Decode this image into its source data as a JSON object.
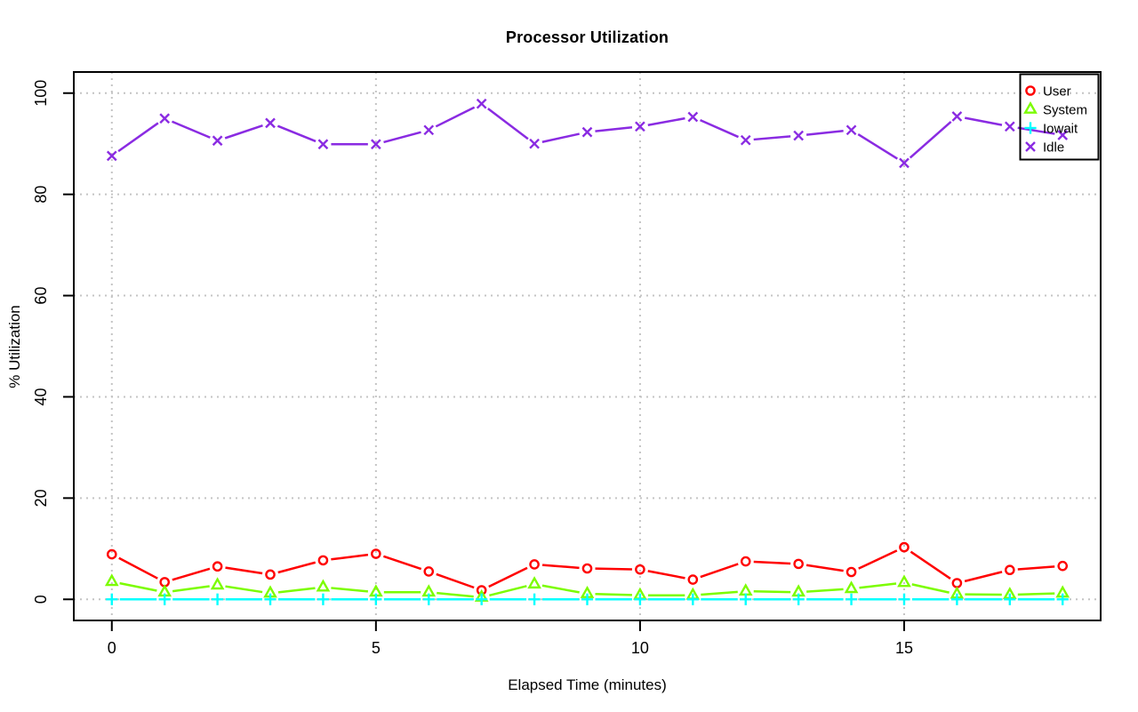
{
  "chart_data": {
    "type": "line",
    "title": "Processor Utilization",
    "xlabel": "Elapsed Time (minutes)",
    "ylabel": "% Utilization",
    "x": [
      0,
      1,
      2,
      3,
      4,
      5,
      6,
      7,
      8,
      9,
      10,
      11,
      12,
      13,
      14,
      15,
      16,
      17,
      18
    ],
    "xticks": [
      0,
      5,
      10,
      15
    ],
    "yticks": [
      0,
      20,
      40,
      60,
      80,
      100
    ],
    "xlim": [
      -0.72,
      18.72
    ],
    "ylim": [
      -4.17,
      104.17
    ],
    "grid": true,
    "grid_style": "dotted",
    "legend_position": "top-right",
    "series": [
      {
        "name": "User",
        "color": "#FF0000",
        "marker": "circle",
        "values": [
          8.9,
          3.4,
          6.5,
          4.9,
          7.7,
          9.0,
          5.5,
          1.8,
          6.9,
          6.1,
          5.9,
          3.9,
          7.5,
          7.0,
          5.4,
          10.3,
          3.2,
          5.8,
          6.6
        ]
      },
      {
        "name": "System",
        "color": "#7CFC00",
        "marker": "triangle",
        "values": [
          3.5,
          1.4,
          2.8,
          1.2,
          2.4,
          1.4,
          1.4,
          0.4,
          3.0,
          1.1,
          0.8,
          0.8,
          1.6,
          1.4,
          2.1,
          3.3,
          1.0,
          0.9,
          1.2
        ]
      },
      {
        "name": "Iowait",
        "color": "#00FFFF",
        "marker": "plus",
        "values": [
          0,
          0,
          0,
          0,
          0,
          0,
          0,
          0,
          0,
          0,
          0,
          0,
          0,
          0,
          0,
          0,
          0,
          0,
          0
        ]
      },
      {
        "name": "Idle",
        "color": "#8A2BE2",
        "marker": "x",
        "values": [
          87.6,
          95.0,
          90.6,
          94.1,
          89.9,
          89.9,
          92.7,
          97.9,
          90.0,
          92.3,
          93.4,
          95.3,
          90.7,
          91.6,
          92.7,
          86.2,
          95.4,
          93.4,
          91.7
        ]
      }
    ]
  },
  "colors": {
    "background": "#FFFFFF",
    "grid": "#C4C4C4",
    "axis": "#000000",
    "text": "#000000"
  }
}
